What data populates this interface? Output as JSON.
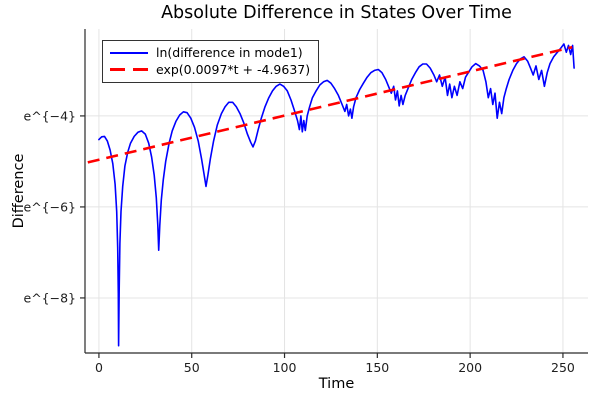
{
  "title": "Absolute Difference in States Over Time",
  "axes": {
    "xlabel": "Time",
    "ylabel": "Difference"
  },
  "chart_data": {
    "type": "line",
    "title": "Absolute Difference in States Over Time",
    "xlabel": "Time",
    "ylabel": "Difference",
    "xlim": [
      -7.5,
      263.5
    ],
    "ylim_ln": [
      -9.21,
      -2.09
    ],
    "xticks": [
      0,
      50,
      100,
      150,
      200,
      250
    ],
    "yticks": [
      {
        "ln": -4,
        "label": "e^{−4}"
      },
      {
        "ln": -6,
        "label": "e^{−6}"
      },
      {
        "ln": -8,
        "label": "e^{−8}"
      }
    ],
    "grid": true,
    "legend_position": "top-left",
    "colors": {
      "series1": "#0000ff",
      "series2": "#ff0000",
      "grid": "#e4e4e4",
      "spine": "#2a2a2a",
      "tick_text": "#1f1f1f"
    },
    "series": [
      {
        "name": "ln(difference in mode1)",
        "color": "#0000ff",
        "style": "solid",
        "points": [
          [
            0,
            -4.52
          ],
          [
            1.5,
            -4.46
          ],
          [
            3,
            -4.45
          ],
          [
            4.5,
            -4.55
          ],
          [
            6,
            -4.75
          ],
          [
            7.5,
            -5.05
          ],
          [
            8.7,
            -5.5
          ],
          [
            9.6,
            -6.1
          ],
          [
            10.1,
            -6.9
          ],
          [
            10.45,
            -7.9
          ],
          [
            10.6,
            -9.05
          ],
          [
            10.9,
            -7.8
          ],
          [
            11.3,
            -6.8
          ],
          [
            11.9,
            -6.1
          ],
          [
            12.8,
            -5.55
          ],
          [
            14,
            -5.1
          ],
          [
            15.5,
            -4.8
          ],
          [
            17,
            -4.6
          ],
          [
            19,
            -4.45
          ],
          [
            21,
            -4.36
          ],
          [
            23,
            -4.33
          ],
          [
            25,
            -4.4
          ],
          [
            26.8,
            -4.6
          ],
          [
            28.4,
            -4.9
          ],
          [
            29.8,
            -5.3
          ],
          [
            30.9,
            -5.8
          ],
          [
            31.7,
            -6.4
          ],
          [
            32.2,
            -6.95
          ],
          [
            32.8,
            -6.4
          ],
          [
            33.6,
            -5.85
          ],
          [
            34.7,
            -5.4
          ],
          [
            36,
            -5
          ],
          [
            37.8,
            -4.6
          ],
          [
            39.5,
            -4.33
          ],
          [
            41.5,
            -4.12
          ],
          [
            43.5,
            -3.98
          ],
          [
            45.5,
            -3.91
          ],
          [
            47.5,
            -3.93
          ],
          [
            49.5,
            -4.05
          ],
          [
            51.5,
            -4.25
          ],
          [
            53.5,
            -4.55
          ],
          [
            55.3,
            -4.95
          ],
          [
            56.7,
            -5.3
          ],
          [
            57.7,
            -5.55
          ],
          [
            58.7,
            -5.3
          ],
          [
            60,
            -4.95
          ],
          [
            61.8,
            -4.55
          ],
          [
            63.8,
            -4.2
          ],
          [
            66,
            -3.95
          ],
          [
            68,
            -3.8
          ],
          [
            70,
            -3.7
          ],
          [
            72,
            -3.7
          ],
          [
            74,
            -3.8
          ],
          [
            76,
            -3.95
          ],
          [
            78,
            -4.15
          ],
          [
            80,
            -4.4
          ],
          [
            81.8,
            -4.58
          ],
          [
            83,
            -4.68
          ],
          [
            84.3,
            -4.55
          ],
          [
            85.8,
            -4.3
          ],
          [
            87.5,
            -4.05
          ],
          [
            89.5,
            -3.8
          ],
          [
            91.5,
            -3.6
          ],
          [
            93.5,
            -3.45
          ],
          [
            95.5,
            -3.35
          ],
          [
            97.5,
            -3.3
          ],
          [
            99.5,
            -3.35
          ],
          [
            101.5,
            -3.45
          ],
          [
            103.5,
            -3.65
          ],
          [
            105.5,
            -3.9
          ],
          [
            107,
            -4.1
          ],
          [
            108,
            -4.3
          ],
          [
            108.8,
            -4.0
          ],
          [
            109.6,
            -4.35
          ],
          [
            110.4,
            -4.1
          ],
          [
            111.2,
            -4.32
          ],
          [
            112.2,
            -4.0
          ],
          [
            113.5,
            -3.8
          ],
          [
            115,
            -3.6
          ],
          [
            117,
            -3.45
          ],
          [
            119,
            -3.32
          ],
          [
            121,
            -3.25
          ],
          [
            123,
            -3.22
          ],
          [
            125,
            -3.28
          ],
          [
            127,
            -3.4
          ],
          [
            129,
            -3.55
          ],
          [
            131,
            -3.75
          ],
          [
            132.5,
            -3.9
          ],
          [
            133.5,
            -3.75
          ],
          [
            134.5,
            -4.0
          ],
          [
            135.5,
            -3.85
          ],
          [
            136.3,
            -4.05
          ],
          [
            137.2,
            -3.8
          ],
          [
            138.5,
            -3.6
          ],
          [
            140.5,
            -3.42
          ],
          [
            142.5,
            -3.28
          ],
          [
            144.5,
            -3.15
          ],
          [
            146.5,
            -3.05
          ],
          [
            148.5,
            -3.0
          ],
          [
            150.5,
            -2.98
          ],
          [
            152.5,
            -3.05
          ],
          [
            154.5,
            -3.2
          ],
          [
            156,
            -3.35
          ],
          [
            157.5,
            -3.5
          ],
          [
            158.8,
            -3.35
          ],
          [
            159.8,
            -3.65
          ],
          [
            160.8,
            -3.45
          ],
          [
            161.8,
            -3.78
          ],
          [
            162.8,
            -3.55
          ],
          [
            163.8,
            -3.75
          ],
          [
            165,
            -3.55
          ],
          [
            166.5,
            -3.4
          ],
          [
            168.5,
            -3.2
          ],
          [
            170.5,
            -3.05
          ],
          [
            172.5,
            -2.92
          ],
          [
            174.5,
            -2.86
          ],
          [
            176.5,
            -2.86
          ],
          [
            178.5,
            -2.95
          ],
          [
            180.5,
            -3.1
          ],
          [
            182,
            -3.25
          ],
          [
            183.5,
            -3.1
          ],
          [
            185,
            -3.35
          ],
          [
            186.5,
            -3.15
          ],
          [
            187.8,
            -3.55
          ],
          [
            189,
            -3.3
          ],
          [
            190.2,
            -3.6
          ],
          [
            191.5,
            -3.35
          ],
          [
            193,
            -3.55
          ],
          [
            194.5,
            -3.25
          ],
          [
            196,
            -3.4
          ],
          [
            197.5,
            -3.15
          ],
          [
            199,
            -3.05
          ],
          [
            201,
            -2.92
          ],
          [
            203,
            -2.85
          ],
          [
            205,
            -2.9
          ],
          [
            207,
            -3.0
          ],
          [
            208.5,
            -3.25
          ],
          [
            209.8,
            -3.6
          ],
          [
            211,
            -3.4
          ],
          [
            212.2,
            -3.75
          ],
          [
            213.4,
            -3.5
          ],
          [
            214.6,
            -4.05
          ],
          [
            215.8,
            -3.7
          ],
          [
            217,
            -3.95
          ],
          [
            218.2,
            -3.6
          ],
          [
            219.5,
            -3.4
          ],
          [
            221,
            -3.2
          ],
          [
            223,
            -3.0
          ],
          [
            225,
            -2.85
          ],
          [
            227,
            -2.75
          ],
          [
            229,
            -2.7
          ],
          [
            231,
            -2.8
          ],
          [
            232.5,
            -2.95
          ],
          [
            234,
            -3.1
          ],
          [
            235.5,
            -2.9
          ],
          [
            237,
            -3.2
          ],
          [
            238.5,
            -3.0
          ],
          [
            240,
            -3.35
          ],
          [
            241.5,
            -3.05
          ],
          [
            243,
            -2.85
          ],
          [
            245,
            -2.7
          ],
          [
            247,
            -2.6
          ],
          [
            249,
            -2.5
          ],
          [
            250.5,
            -2.42
          ],
          [
            251.8,
            -2.6
          ],
          [
            253,
            -2.45
          ],
          [
            254.2,
            -2.65
          ],
          [
            255.2,
            -2.45
          ],
          [
            256,
            -2.95
          ]
        ]
      },
      {
        "name": "exp(0.0097*t + -4.9637)",
        "color": "#ff0000",
        "style": "dashed",
        "fit": {
          "slope": 0.0097,
          "intercept": -4.9637
        },
        "points": [
          [
            -6,
            -5.0219
          ],
          [
            255,
            -2.4902
          ]
        ]
      }
    ]
  }
}
